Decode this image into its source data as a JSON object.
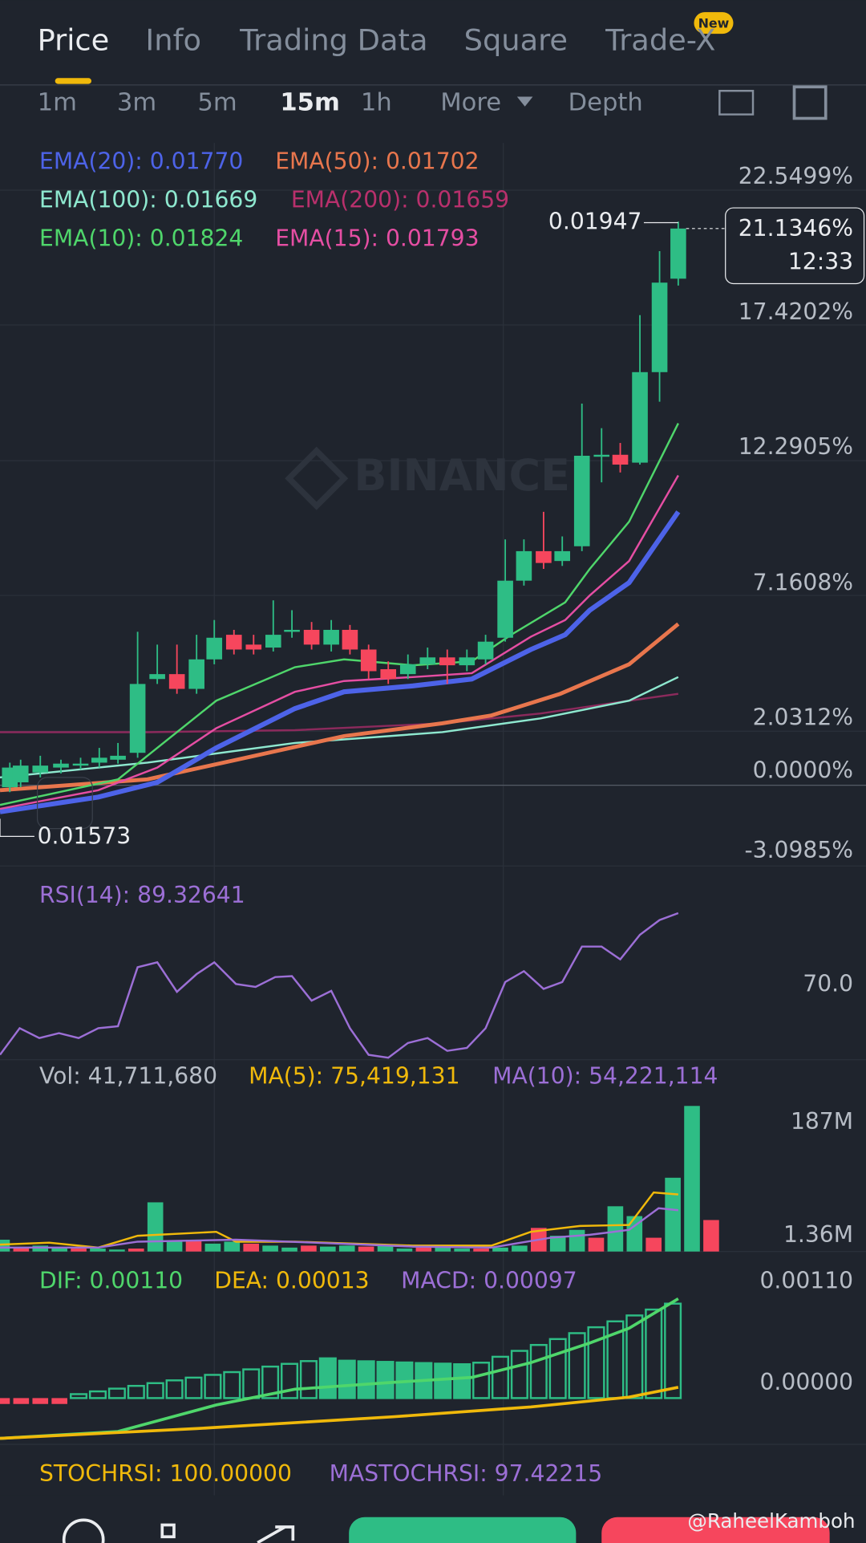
{
  "tabs": [
    "Price",
    "Info",
    "Trading Data",
    "Square",
    "Trade-X"
  ],
  "badge": "New",
  "intervals": [
    "1m",
    "3m",
    "5m",
    "15m",
    "1h",
    "More",
    "Depth"
  ],
  "ema_labels": [
    "EMA(20): 0.01770",
    "EMA(50): 0.01702",
    "EMA(100): 0.01669",
    "EMA(200): 0.01659",
    "EMA(10): 0.01824",
    "EMA(15): 0.01793"
  ],
  "price_axis": [
    "22.5499%",
    "17.4202%",
    "12.2905%",
    "7.1608%",
    "2.0312%",
    "0.0000%",
    "-3.0985%"
  ],
  "high_label": "0.01947",
  "current": {
    "percent": "21.1346%",
    "time": "12:33"
  },
  "low_label": "0.01573",
  "watermark": "BINANCE",
  "rsi": {
    "label": "RSI(14): 89.32641",
    "axis": [
      "70.0"
    ]
  },
  "volume": {
    "labels": [
      "Vol: 41,711,680",
      "MA(5): 75,419,131",
      "MA(10): 54,221,114"
    ],
    "axis": [
      "187M",
      "1.36M"
    ]
  },
  "macd": {
    "labels": [
      "DIF: 0.00110",
      "DEA: 0.00013",
      "MACD: 0.00097"
    ],
    "axis": [
      "0.00110",
      "0.00000"
    ]
  },
  "stochrsi": {
    "labels": [
      "STOCHRSI: 100.00000",
      "MASTOCHRSI: 97.42215"
    ]
  },
  "footer": {
    "credit": "@RaheelKamboh"
  }
}
